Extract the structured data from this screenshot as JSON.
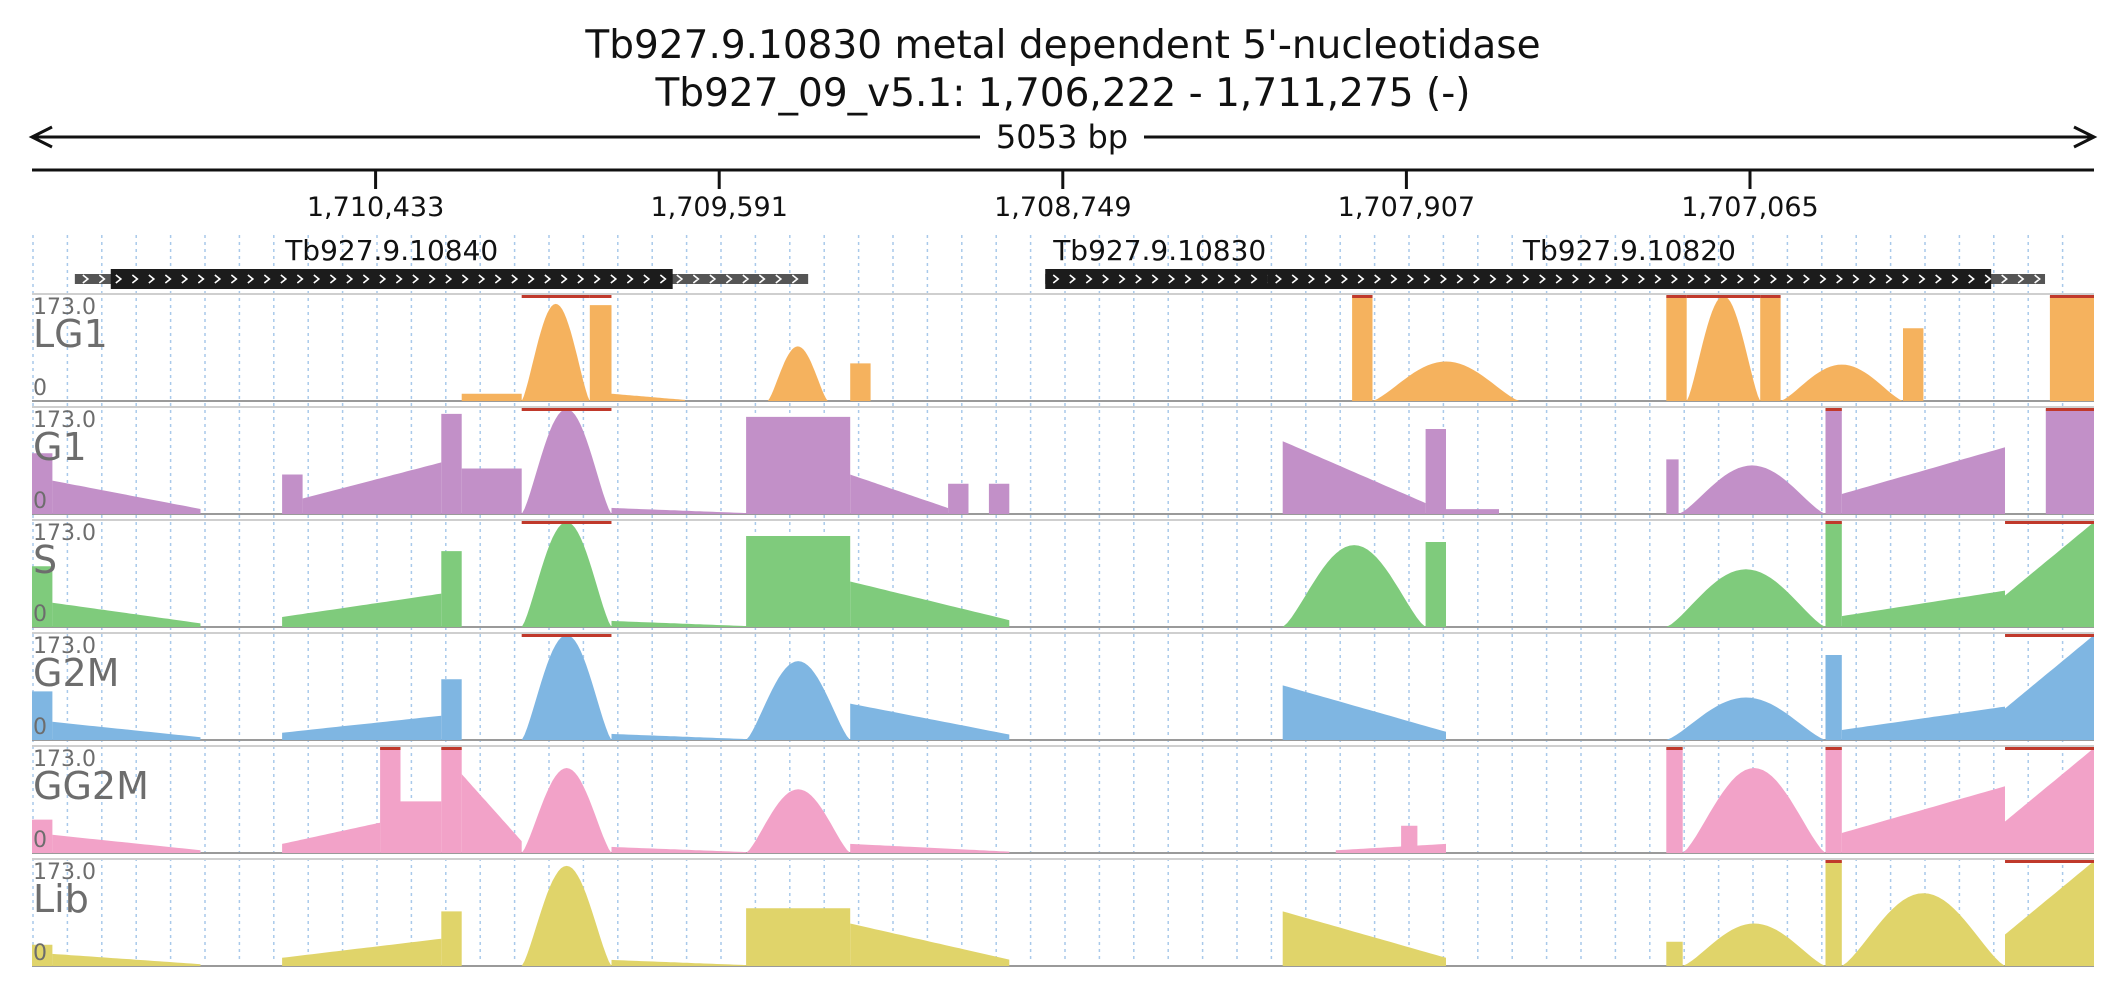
{
  "header": {
    "title": "Tb927.9.10830  metal dependent 5'-nucleotidase",
    "subtitle": "Tb927_09_v5.1: 1,706,222 - 1,711,275 (-)",
    "span_label": "5053 bp"
  },
  "chart_data": {
    "type": "area",
    "region": {
      "chromosome": "Tb927_09_v5.1",
      "start": 1706222,
      "end": 1711275,
      "strand": "-"
    },
    "x_ticks": [
      {
        "pos": 1710433,
        "label": "1,710,433"
      },
      {
        "pos": 1709591,
        "label": "1,709,591"
      },
      {
        "pos": 1708749,
        "label": "1,708,749"
      },
      {
        "pos": 1707907,
        "label": "1,707,907"
      },
      {
        "pos": 1707065,
        "label": "1,707,065"
      }
    ],
    "genes": [
      {
        "name": "Tb927.9.10840",
        "utr": [
          1711170,
          1709373
        ],
        "cds": [
          1711082,
          1709705
        ]
      },
      {
        "name": "Tb927.9.10830",
        "utr": [
          1708792,
          1708177
        ],
        "cds": [
          1708792,
          1708231
        ]
      },
      {
        "name": "Tb927.9.10820",
        "utr": [
          1708247,
          1706342
        ],
        "cds": [
          1708247,
          1706474
        ]
      }
    ],
    "y_range": [
      0,
      173.0
    ],
    "y_max_label": "173.0",
    "y_min_label": "0",
    "series_colors": {
      "LG1": "#f5b25e",
      "G1": "#c290c8",
      "S": "#7fcb7c",
      "G2M": "#7fb6e2",
      "GG2M": "#f2a2c8",
      "Lib": "#e0d46a"
    },
    "series": [
      {
        "name": "LG1",
        "segments": [
          {
            "x": [
              1710222,
              1710075
            ],
            "shape": "flat",
            "peak": 12
          },
          {
            "x": [
              1710075,
              1709908
            ],
            "shape": "hump",
            "peak": 160,
            "cap": true
          },
          {
            "x": [
              1709908,
              1709855
            ],
            "shape": "flat",
            "peak": 158,
            "cap": true
          },
          {
            "x": [
              1709855,
              1709675
            ],
            "shape": "decay",
            "peak": 12
          },
          {
            "x": [
              1709472,
              1709325
            ],
            "shape": "hump",
            "peak": 90
          },
          {
            "x": [
              1709270,
              1709220
            ],
            "shape": "flat",
            "peak": 62
          },
          {
            "x": [
              1708040,
              1707990
            ],
            "shape": "flat",
            "peak": 173,
            "cap": true
          },
          {
            "x": [
              1707990,
              1707630
            ],
            "shape": "hump",
            "peak": 65
          },
          {
            "x": [
              1707270,
              1707220
            ],
            "shape": "flat",
            "peak": 173,
            "cap": true
          },
          {
            "x": [
              1707220,
              1707040
            ],
            "shape": "hump",
            "peak": 173,
            "cap": true
          },
          {
            "x": [
              1707040,
              1706990
            ],
            "shape": "flat",
            "peak": 173,
            "cap": true
          },
          {
            "x": [
              1706990,
              1706690
            ],
            "shape": "hump",
            "peak": 60
          },
          {
            "x": [
              1706690,
              1706640
            ],
            "shape": "flat",
            "peak": 120
          },
          {
            "x": [
              1706330,
              1706222
            ],
            "shape": "flat",
            "peak": 173,
            "cap": true
          }
        ]
      },
      {
        "name": "G1",
        "segments": [
          {
            "x": [
              1711275,
              1711225
            ],
            "shape": "flat",
            "peak": 100
          },
          {
            "x": [
              1711225,
              1710862
            ],
            "shape": "decay",
            "peak": 55
          },
          {
            "x": [
              1710662,
              1710612
            ],
            "shape": "flat",
            "peak": 65
          },
          {
            "x": [
              1710612,
              1710272
            ],
            "shape": "ramp",
            "peak": 85
          },
          {
            "x": [
              1710272,
              1710222
            ],
            "shape": "flat",
            "peak": 165
          },
          {
            "x": [
              1710222,
              1710075
            ],
            "shape": "flat",
            "peak": 75
          },
          {
            "x": [
              1710075,
              1709855
            ],
            "shape": "hump",
            "peak": 173,
            "cap": true
          },
          {
            "x": [
              1709855,
              1709525
            ],
            "shape": "decay",
            "peak": 10
          },
          {
            "x": [
              1709525,
              1709270
            ],
            "shape": "flat",
            "peak": 160
          },
          {
            "x": [
              1709270,
              1709030
            ],
            "shape": "decay",
            "peak": 65
          },
          {
            "x": [
              1709030,
              1708980
            ],
            "shape": "flat",
            "peak": 50
          },
          {
            "x": [
              1708930,
              1708880
            ],
            "shape": "flat",
            "peak": 50
          },
          {
            "x": [
              1708210,
              1707860
            ],
            "shape": "decay",
            "peak": 120
          },
          {
            "x": [
              1707860,
              1707810
            ],
            "shape": "flat",
            "peak": 140
          },
          {
            "x": [
              1707810,
              1707680
            ],
            "shape": "flat",
            "peak": 8
          },
          {
            "x": [
              1707270,
              1707240
            ],
            "shape": "flat",
            "peak": 90
          },
          {
            "x": [
              1707240,
              1706880
            ],
            "shape": "hump",
            "peak": 80
          },
          {
            "x": [
              1706880,
              1706840
            ],
            "shape": "flat",
            "peak": 173,
            "cap": true
          },
          {
            "x": [
              1706840,
              1706440
            ],
            "shape": "ramp",
            "peak": 110
          },
          {
            "x": [
              1706340,
              1706222
            ],
            "shape": "flat",
            "peak": 173,
            "cap": true
          }
        ]
      },
      {
        "name": "S",
        "segments": [
          {
            "x": [
              1711275,
              1711225
            ],
            "shape": "flat",
            "peak": 100
          },
          {
            "x": [
              1711225,
              1710862
            ],
            "shape": "decay",
            "peak": 40
          },
          {
            "x": [
              1710662,
              1710272
            ],
            "shape": "ramp",
            "peak": 55
          },
          {
            "x": [
              1710272,
              1710222
            ],
            "shape": "flat",
            "peak": 125
          },
          {
            "x": [
              1710075,
              1709855
            ],
            "shape": "hump",
            "peak": 173,
            "cap": true
          },
          {
            "x": [
              1709855,
              1709525
            ],
            "shape": "decay",
            "peak": 10
          },
          {
            "x": [
              1709525,
              1709270
            ],
            "shape": "flat",
            "peak": 150
          },
          {
            "x": [
              1709270,
              1708880
            ],
            "shape": "decay",
            "peak": 75
          },
          {
            "x": [
              1708210,
              1707860
            ],
            "shape": "hump",
            "peak": 135
          },
          {
            "x": [
              1707860,
              1707810
            ],
            "shape": "flat",
            "peak": 140
          },
          {
            "x": [
              1707270,
              1706880
            ],
            "shape": "hump",
            "peak": 95
          },
          {
            "x": [
              1706880,
              1706840
            ],
            "shape": "flat",
            "peak": 173,
            "cap": true
          },
          {
            "x": [
              1706840,
              1706440
            ],
            "shape": "ramp",
            "peak": 60
          },
          {
            "x": [
              1706440,
              1706222
            ],
            "shape": "ramp",
            "peak": 173,
            "cap": true
          }
        ]
      },
      {
        "name": "G2M",
        "segments": [
          {
            "x": [
              1711275,
              1711225
            ],
            "shape": "flat",
            "peak": 80
          },
          {
            "x": [
              1711225,
              1710862
            ],
            "shape": "decay",
            "peak": 30
          },
          {
            "x": [
              1710662,
              1710272
            ],
            "shape": "ramp",
            "peak": 40
          },
          {
            "x": [
              1710272,
              1710222
            ],
            "shape": "flat",
            "peak": 100
          },
          {
            "x": [
              1710075,
              1709855
            ],
            "shape": "hump",
            "peak": 173,
            "cap": true
          },
          {
            "x": [
              1709855,
              1709525
            ],
            "shape": "decay",
            "peak": 10
          },
          {
            "x": [
              1709525,
              1709270
            ],
            "shape": "hump",
            "peak": 130
          },
          {
            "x": [
              1709270,
              1708880
            ],
            "shape": "decay",
            "peak": 60
          },
          {
            "x": [
              1708210,
              1707810
            ],
            "shape": "decay",
            "peak": 90
          },
          {
            "x": [
              1707270,
              1706880
            ],
            "shape": "hump",
            "peak": 70
          },
          {
            "x": [
              1706880,
              1706840
            ],
            "shape": "flat",
            "peak": 140
          },
          {
            "x": [
              1706840,
              1706440
            ],
            "shape": "ramp",
            "peak": 55
          },
          {
            "x": [
              1706440,
              1706222
            ],
            "shape": "ramp",
            "peak": 173,
            "cap": true
          }
        ]
      },
      {
        "name": "GG2M",
        "segments": [
          {
            "x": [
              1711275,
              1711225
            ],
            "shape": "flat",
            "peak": 55
          },
          {
            "x": [
              1711225,
              1710862
            ],
            "shape": "decay",
            "peak": 30
          },
          {
            "x": [
              1710662,
              1710422
            ],
            "shape": "ramp",
            "peak": 50
          },
          {
            "x": [
              1710422,
              1710372
            ],
            "shape": "flat",
            "peak": 173,
            "cap": true
          },
          {
            "x": [
              1710372,
              1710272
            ],
            "shape": "flat",
            "peak": 85
          },
          {
            "x": [
              1710272,
              1710222
            ],
            "shape": "flat",
            "peak": 173,
            "cap": true
          },
          {
            "x": [
              1710222,
              1710075
            ],
            "shape": "decay",
            "peak": 130
          },
          {
            "x": [
              1710075,
              1709855
            ],
            "shape": "hump",
            "peak": 140
          },
          {
            "x": [
              1709855,
              1709525
            ],
            "shape": "decay",
            "peak": 10
          },
          {
            "x": [
              1709525,
              1709270
            ],
            "shape": "hump",
            "peak": 105
          },
          {
            "x": [
              1709270,
              1708880
            ],
            "shape": "decay",
            "peak": 15
          },
          {
            "x": [
              1708080,
              1707810
            ],
            "shape": "ramp",
            "peak": 15
          },
          {
            "x": [
              1707920,
              1707880
            ],
            "shape": "flat",
            "peak": 45
          },
          {
            "x": [
              1707270,
              1707230
            ],
            "shape": "flat",
            "peak": 173,
            "cap": true
          },
          {
            "x": [
              1707230,
              1706880
            ],
            "shape": "hump",
            "peak": 140
          },
          {
            "x": [
              1706880,
              1706840
            ],
            "shape": "flat",
            "peak": 173,
            "cap": true
          },
          {
            "x": [
              1706840,
              1706440
            ],
            "shape": "ramp",
            "peak": 110
          },
          {
            "x": [
              1706440,
              1706222
            ],
            "shape": "ramp",
            "peak": 173,
            "cap": true
          }
        ]
      },
      {
        "name": "Lib",
        "segments": [
          {
            "x": [
              1711275,
              1711225
            ],
            "shape": "flat",
            "peak": 35
          },
          {
            "x": [
              1711225,
              1710862
            ],
            "shape": "decay",
            "peak": 20
          },
          {
            "x": [
              1710662,
              1710272
            ],
            "shape": "ramp",
            "peak": 45
          },
          {
            "x": [
              1710272,
              1710222
            ],
            "shape": "flat",
            "peak": 90
          },
          {
            "x": [
              1710075,
              1709855
            ],
            "shape": "hump",
            "peak": 165
          },
          {
            "x": [
              1709855,
              1709525
            ],
            "shape": "decay",
            "peak": 10
          },
          {
            "x": [
              1709525,
              1709270
            ],
            "shape": "flat",
            "peak": 95
          },
          {
            "x": [
              1709270,
              1708880
            ],
            "shape": "decay",
            "peak": 70
          },
          {
            "x": [
              1708210,
              1707810
            ],
            "shape": "decay",
            "peak": 90
          },
          {
            "x": [
              1707270,
              1707230
            ],
            "shape": "flat",
            "peak": 40
          },
          {
            "x": [
              1707230,
              1706880
            ],
            "shape": "hump",
            "peak": 70
          },
          {
            "x": [
              1706880,
              1706840
            ],
            "shape": "flat",
            "peak": 173,
            "cap": true
          },
          {
            "x": [
              1706840,
              1706440
            ],
            "shape": "hump",
            "peak": 120
          },
          {
            "x": [
              1706440,
              1706222
            ],
            "shape": "ramp",
            "peak": 173,
            "cap": true
          }
        ]
      }
    ]
  }
}
